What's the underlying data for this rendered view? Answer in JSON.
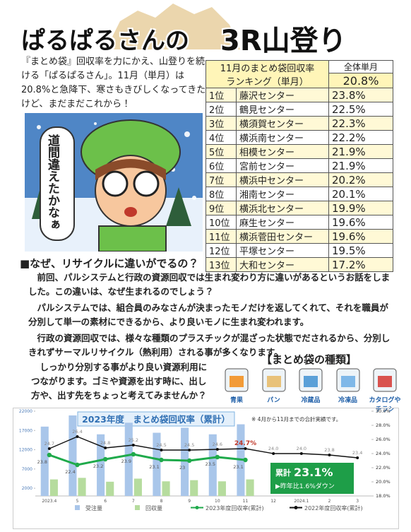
{
  "header": {
    "title_left": "ぱるぱるさんの",
    "title_right": "3R山登り"
  },
  "intro": "『まとめ袋』回収率を力にかえ、山登りを続ける「ぱるぱるさん」。11月（単月）は20.8%と急降下、寒さもきびしくなってきたけど、まだまだこれから！",
  "speech": "道間違えたかなぁ",
  "ranking": {
    "title": "11月のまとめ袋回収率",
    "subtitle": "ランキング（単月）",
    "overall_label": "全体単月",
    "overall_value": "20.8%",
    "rows": [
      [
        "1位",
        "藤沢センター",
        "23.8%"
      ],
      [
        "2位",
        "鶴見センター",
        "22.5%"
      ],
      [
        "3位",
        "横須賀センター",
        "22.3%"
      ],
      [
        "4位",
        "横浜南センター",
        "22.2%"
      ],
      [
        "5位",
        "相模センター",
        "21.9%"
      ],
      [
        "6位",
        "宮前センター",
        "21.9%"
      ],
      [
        "7位",
        "横浜中センター",
        "20.2%"
      ],
      [
        "8位",
        "湘南センター",
        "20.1%"
      ],
      [
        "9位",
        "横浜北センター",
        "19.9%"
      ],
      [
        "10位",
        "麻生センター",
        "19.6%"
      ],
      [
        "11位",
        "横浜菅田センター",
        "19.6%"
      ],
      [
        "12位",
        "平塚センター",
        "19.5%"
      ],
      [
        "13位",
        "大和センター",
        "17.2%"
      ]
    ]
  },
  "section": {
    "heading": "■なぜ、リサイクルに違いがでるの？",
    "paragraphs": [
      "前回、パルシステムと行政の資源回収では生まれ変わり方に違いがあるというお話をしました。この違いは、なぜ生まれるのでしょう？",
      "パルシステムでは、組合員のみなさんが決まったモノだけを返してくれて、それを職員が分別して単一の素材にできるから、より良いモノに生まれ変われます。",
      "行政の資源回収では、様々な種類のプラスチックが混ざった状態でだされるから、分別しきれずサーマルリサイクル（熱利用）される事が多くなります。"
    ]
  },
  "closing": "しっかり分別する事がより良い資源利用につながります。ゴミや資源を出す時に、出し方や、出す先をちょっと考えてみませんか？",
  "bag_types": {
    "title": "【まとめ袋の種類】",
    "items": [
      "青果",
      "パン",
      "冷蔵品",
      "冷凍品",
      "カタログやチラシ"
    ]
  },
  "chart_data": {
    "type": "bar_line",
    "title": "2023年度　まとめ袋回収率（累計）",
    "note": "※ 4月から11月までの合計実績です。",
    "categories": [
      "2023.4",
      "5",
      "6",
      "7",
      "8",
      "9",
      "10",
      "11",
      "12",
      "2024.1",
      "2",
      "3"
    ],
    "ylim": [
      0,
      22000
    ],
    "yticks": [
      2000,
      7000,
      12000,
      17000,
      22000
    ],
    "y2lim": [
      18,
      30
    ],
    "y2ticks": [
      {
        "value": 18,
        "label": "18.0%"
      },
      {
        "value": 20,
        "label": "20.0%"
      },
      {
        "value": 22,
        "label": "22.0%"
      },
      {
        "value": 24,
        "label": "24.0%"
      },
      {
        "value": 26,
        "label": "26.0%"
      },
      {
        "value": 28,
        "label": "28.0%"
      },
      {
        "value": 30,
        "label": "30.0%"
      }
    ],
    "series": [
      {
        "name": "受注量",
        "type": "bar",
        "color": "#a9c6ea",
        "values": [
          18000,
          20900,
          16000,
          19000,
          16400,
          17700,
          16000,
          18600,
          null,
          null,
          null,
          null
        ]
      },
      {
        "name": "回収量",
        "type": "bar",
        "color": "#b6dc9e",
        "values": [
          4300,
          4700,
          3700,
          4500,
          3800,
          4100,
          3800,
          4300,
          null,
          null,
          null,
          null
        ]
      },
      {
        "name": "2023年度回収率(累計)",
        "type": "line",
        "axis": "y2",
        "color": "#1faa4b",
        "values": [
          23.8,
          22.4,
          23.2,
          23.9,
          23.1,
          23.0,
          23.5,
          23.1,
          null,
          null,
          null,
          null
        ]
      },
      {
        "name": "2022年度回収率(累計)",
        "type": "line",
        "axis": "y2",
        "color": "#111111",
        "values": [
          24.7,
          26.4,
          24.8,
          25.2,
          24.5,
          24.5,
          24.6,
          24.7,
          24.0,
          24.0,
          23.8,
          23.4
        ],
        "value_labels": [
          "24.7",
          "26.4",
          "24.8",
          "25.2",
          "24.5",
          "24.5",
          "24.6",
          "24.7%",
          "24.0",
          "24.0",
          "23.8",
          "23.4"
        ]
      }
    ],
    "callout": {
      "label": "累計",
      "value": "23.1%",
      "note": "▶昨年比1.6%ダウン"
    }
  }
}
